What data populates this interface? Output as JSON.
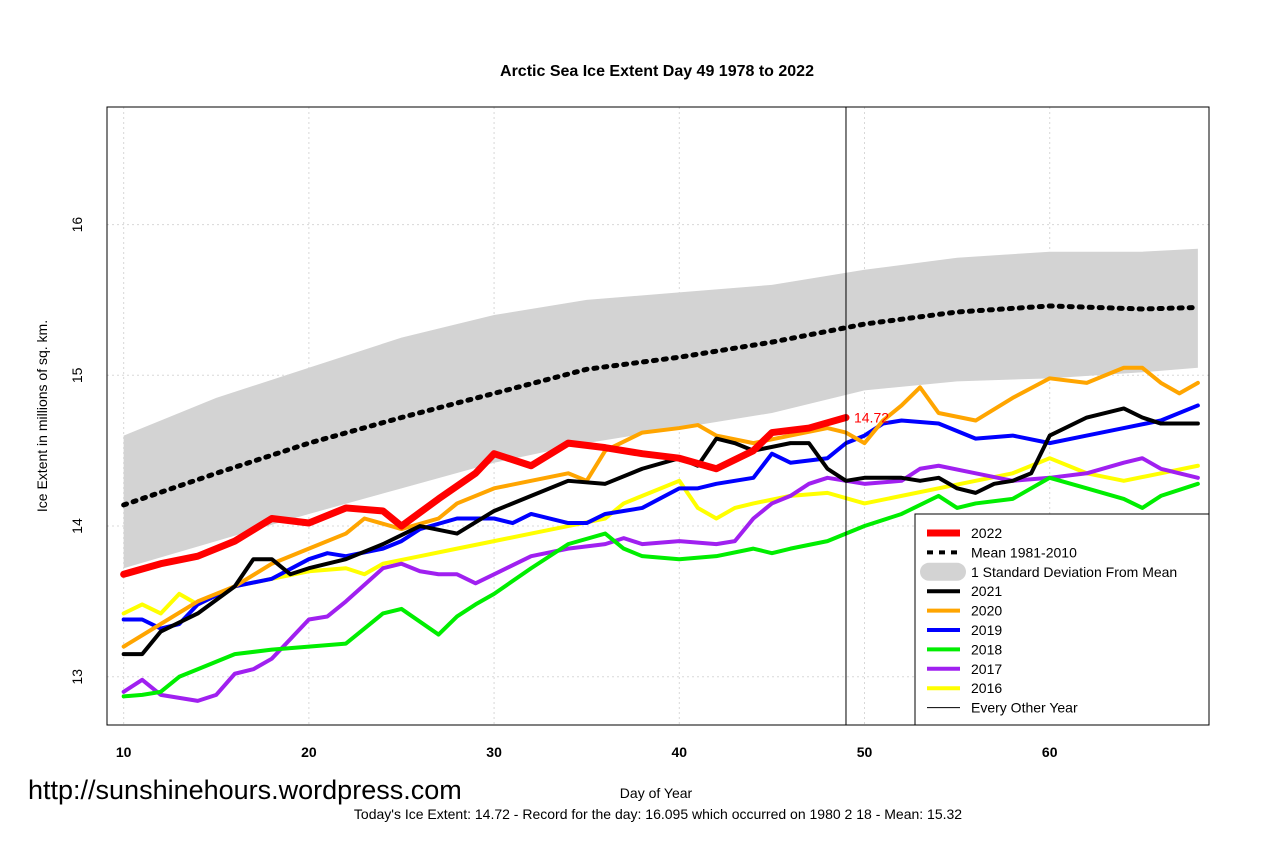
{
  "chart_data": {
    "type": "line",
    "title": "Arctic Sea Ice Extent Day 49 1978 to 2022",
    "xlabel": "Day of Year",
    "ylabel": "Ice Extent in millions of sq. km.",
    "xlim": [
      9.1,
      68.6
    ],
    "ylim": [
      12.68,
      16.78
    ],
    "x_ticks": [
      "10",
      "20",
      "30",
      "40",
      "50",
      "60"
    ],
    "y_ticks": [
      "13",
      "14",
      "15",
      "16"
    ],
    "grid": true,
    "marker_day": 49,
    "today_value_label": "14.72",
    "legend_position": "bottom-right",
    "legend": [
      {
        "label": "2022",
        "color": "#ff0000",
        "style": "thick"
      },
      {
        "label": "Mean 1981-2010",
        "color": "#000000",
        "style": "dotted"
      },
      {
        "label": "1 Standard Deviation From Mean",
        "color": "#d3d3d3",
        "style": "band"
      },
      {
        "label": "2021",
        "color": "#000000",
        "style": "thick"
      },
      {
        "label": "2020",
        "color": "#ffa500",
        "style": "thick"
      },
      {
        "label": "2019",
        "color": "#0000ff",
        "style": "thick"
      },
      {
        "label": "2018",
        "color": "#00ee00",
        "style": "thick"
      },
      {
        "label": "2017",
        "color": "#a020f0",
        "style": "thick"
      },
      {
        "label": "2016",
        "color": "#ffff00",
        "style": "thick"
      },
      {
        "label": "Every Other Year",
        "color": "#000000",
        "style": "thin"
      }
    ],
    "mean": {
      "x": [
        10,
        15,
        20,
        25,
        30,
        35,
        40,
        45,
        50,
        55,
        60,
        65,
        68
      ],
      "y": [
        14.14,
        14.35,
        14.55,
        14.72,
        14.88,
        15.04,
        15.12,
        15.22,
        15.34,
        15.42,
        15.46,
        15.44,
        15.45
      ]
    },
    "std_band": {
      "x": [
        10,
        15,
        20,
        25,
        30,
        35,
        40,
        45,
        50,
        55,
        60,
        65,
        68
      ],
      "upper": [
        14.6,
        14.85,
        15.05,
        15.25,
        15.4,
        15.5,
        15.55,
        15.6,
        15.7,
        15.78,
        15.82,
        15.82,
        15.84
      ],
      "lower": [
        13.72,
        13.9,
        14.08,
        14.25,
        14.42,
        14.55,
        14.65,
        14.75,
        14.9,
        14.96,
        14.98,
        15.02,
        15.05
      ]
    },
    "series": [
      {
        "name": "2022",
        "color": "#ff0000",
        "x": [
          10,
          12,
          14,
          16,
          18,
          20,
          22,
          24,
          25,
          27,
          29,
          30,
          32,
          34,
          36,
          38,
          40,
          42,
          44,
          45,
          47,
          49
        ],
        "y": [
          13.68,
          13.75,
          13.8,
          13.9,
          14.05,
          14.02,
          14.12,
          14.1,
          14.0,
          14.18,
          14.35,
          14.48,
          14.4,
          14.55,
          14.52,
          14.48,
          14.45,
          14.38,
          14.5,
          14.62,
          14.65,
          14.72
        ]
      },
      {
        "name": "2021",
        "color": "#000000",
        "x": [
          10,
          11,
          12,
          14,
          16,
          17,
          18,
          19,
          20,
          22,
          24,
          26,
          28,
          30,
          32,
          34,
          36,
          38,
          40,
          41,
          42,
          43,
          44,
          46,
          47,
          48,
          49,
          50,
          52,
          53,
          54,
          55,
          56,
          57,
          58,
          59,
          60,
          62,
          64,
          65,
          66,
          68
        ],
        "y": [
          13.15,
          13.15,
          13.3,
          13.42,
          13.6,
          13.78,
          13.78,
          13.68,
          13.72,
          13.78,
          13.88,
          14.0,
          13.95,
          14.1,
          14.2,
          14.3,
          14.28,
          14.38,
          14.45,
          14.4,
          14.58,
          14.55,
          14.5,
          14.55,
          14.55,
          14.38,
          14.3,
          14.32,
          14.32,
          14.3,
          14.32,
          14.25,
          14.22,
          14.28,
          14.3,
          14.35,
          14.6,
          14.72,
          14.78,
          14.72,
          14.68,
          14.68
        ]
      },
      {
        "name": "2020",
        "color": "#ffa500",
        "x": [
          10,
          12,
          14,
          16,
          18,
          20,
          22,
          23,
          25,
          27,
          28,
          30,
          32,
          34,
          35,
          36,
          38,
          40,
          41,
          42,
          44,
          46,
          48,
          49,
          50,
          51,
          52,
          53,
          54,
          56,
          58,
          60,
          62,
          64,
          65,
          66,
          67,
          68
        ],
        "y": [
          13.2,
          13.35,
          13.5,
          13.6,
          13.75,
          13.85,
          13.95,
          14.05,
          13.98,
          14.05,
          14.15,
          14.25,
          14.3,
          14.35,
          14.3,
          14.5,
          14.62,
          14.65,
          14.67,
          14.6,
          14.55,
          14.6,
          14.65,
          14.62,
          14.55,
          14.7,
          14.8,
          14.92,
          14.75,
          14.7,
          14.85,
          14.98,
          14.95,
          15.05,
          15.05,
          14.95,
          14.88,
          14.95
        ]
      },
      {
        "name": "2019",
        "color": "#0000ff",
        "x": [
          10,
          11,
          12,
          13,
          14,
          16,
          18,
          20,
          21,
          22,
          24,
          25,
          26,
          28,
          30,
          31,
          32,
          34,
          35,
          36,
          38,
          40,
          41,
          42,
          44,
          45,
          46,
          48,
          49,
          50,
          51,
          52,
          54,
          56,
          58,
          60,
          62,
          64,
          66,
          68
        ],
        "y": [
          13.38,
          13.38,
          13.32,
          13.35,
          13.48,
          13.6,
          13.65,
          13.78,
          13.82,
          13.8,
          13.85,
          13.9,
          13.98,
          14.05,
          14.05,
          14.02,
          14.08,
          14.02,
          14.02,
          14.08,
          14.12,
          14.25,
          14.25,
          14.28,
          14.32,
          14.48,
          14.42,
          14.45,
          14.55,
          14.6,
          14.68,
          14.7,
          14.68,
          14.58,
          14.6,
          14.55,
          14.6,
          14.65,
          14.7,
          14.8
        ]
      },
      {
        "name": "2018",
        "color": "#00ee00",
        "x": [
          10,
          11,
          12,
          13,
          14,
          16,
          18,
          20,
          22,
          24,
          25,
          27,
          28,
          29,
          30,
          32,
          34,
          36,
          37,
          38,
          40,
          42,
          44,
          45,
          46,
          48,
          50,
          52,
          54,
          55,
          56,
          58,
          60,
          62,
          64,
          65,
          66,
          68
        ],
        "y": [
          12.87,
          12.88,
          12.9,
          13.0,
          13.05,
          13.15,
          13.18,
          13.2,
          13.22,
          13.42,
          13.45,
          13.28,
          13.4,
          13.48,
          13.55,
          13.72,
          13.88,
          13.95,
          13.85,
          13.8,
          13.78,
          13.8,
          13.85,
          13.82,
          13.85,
          13.9,
          14.0,
          14.08,
          14.2,
          14.12,
          14.15,
          14.18,
          14.32,
          14.25,
          14.18,
          14.12,
          14.2,
          14.28
        ]
      },
      {
        "name": "2017",
        "color": "#a020f0",
        "x": [
          10,
          11,
          12,
          13,
          14,
          15,
          16,
          17,
          18,
          19,
          20,
          21,
          22,
          24,
          25,
          26,
          27,
          28,
          29,
          30,
          32,
          34,
          36,
          37,
          38,
          40,
          42,
          43,
          44,
          45,
          46,
          47,
          48,
          50,
          52,
          53,
          54,
          56,
          58,
          60,
          62,
          64,
          65,
          66,
          68
        ],
        "y": [
          12.9,
          12.98,
          12.88,
          12.86,
          12.84,
          12.88,
          13.02,
          13.05,
          13.12,
          13.25,
          13.38,
          13.4,
          13.5,
          13.72,
          13.75,
          13.7,
          13.68,
          13.68,
          13.62,
          13.68,
          13.8,
          13.85,
          13.88,
          13.92,
          13.88,
          13.9,
          13.88,
          13.9,
          14.05,
          14.15,
          14.2,
          14.28,
          14.32,
          14.28,
          14.3,
          14.38,
          14.4,
          14.35,
          14.3,
          14.32,
          14.35,
          14.42,
          14.45,
          14.38,
          14.32
        ]
      },
      {
        "name": "2016",
        "color": "#ffff00",
        "x": [
          10,
          11,
          12,
          13,
          14,
          16,
          18,
          20,
          22,
          23,
          24,
          26,
          28,
          30,
          32,
          34,
          36,
          37,
          38,
          39,
          40,
          41,
          42,
          43,
          44,
          46,
          48,
          50,
          52,
          54,
          56,
          58,
          60,
          62,
          64,
          66,
          68
        ],
        "y": [
          13.42,
          13.48,
          13.42,
          13.55,
          13.48,
          13.6,
          13.65,
          13.7,
          13.72,
          13.68,
          13.75,
          13.8,
          13.85,
          13.9,
          13.95,
          14.0,
          14.05,
          14.15,
          14.2,
          14.25,
          14.3,
          14.12,
          14.05,
          14.12,
          14.15,
          14.2,
          14.22,
          14.15,
          14.2,
          14.25,
          14.3,
          14.35,
          14.45,
          14.35,
          14.3,
          14.35,
          14.4
        ]
      }
    ]
  },
  "footnote": "Today's Ice Extent: 14.72  - Record for the day: 16.095 which occurred on 1980 2 18  - Mean: 15.32",
  "watermark": "http://sunshinehours.wordpress.com"
}
